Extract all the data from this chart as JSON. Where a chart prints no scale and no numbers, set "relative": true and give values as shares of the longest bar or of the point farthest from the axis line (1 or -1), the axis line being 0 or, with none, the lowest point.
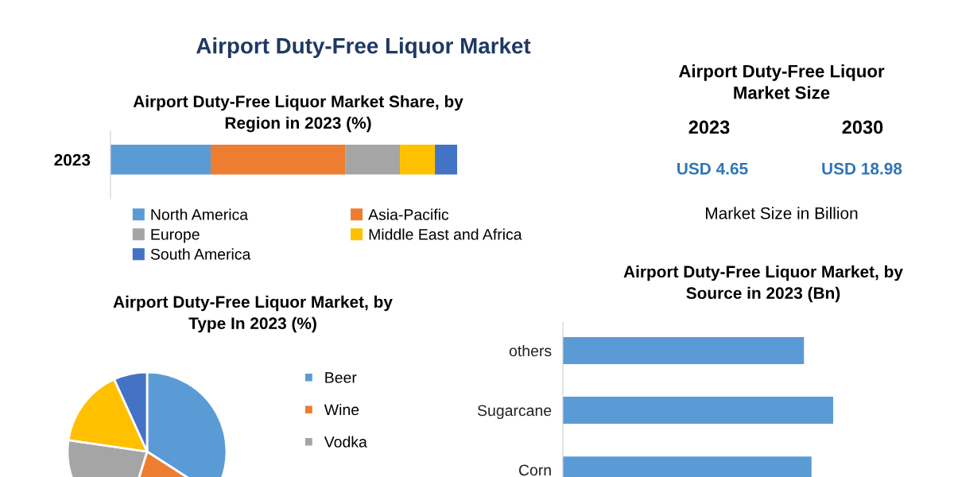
{
  "chart_data": [
    {
      "type": "bar",
      "title": "Airport Duty-Free Liquor Market",
      "subtitle": "Airport Duty-Free Liquor Market Share, by\nRegion in 2023 (%)",
      "orientation": "horizontal",
      "stacked": true,
      "relative": true,
      "legend": "bottom",
      "categories": [
        "2023"
      ],
      "series": [
        {
          "name": "North America",
          "color": "#5b9bd5",
          "values": [
            0.289
          ]
        },
        {
          "name": "Asia-Pacific",
          "color": "#ed7d31",
          "values": [
            0.388
          ]
        },
        {
          "name": "Europe",
          "color": "#a5a5a5",
          "values": [
            0.158
          ]
        },
        {
          "name": "Middle East and Africa",
          "color": "#ffc000",
          "values": [
            0.101
          ]
        },
        {
          "name": "South America",
          "color": "#4472c4",
          "values": [
            0.064
          ]
        }
      ]
    },
    {
      "type": "other",
      "title": "Airport Duty-Free Liquor\nMarket Size",
      "categories": [
        "2023",
        "2030"
      ],
      "value_labels": [
        "USD 4.65",
        "USD 18.98"
      ],
      "color": "#2e75b6",
      "annotations": [
        "Market Size in Billion"
      ]
    },
    {
      "type": "pie",
      "title": "Airport Duty-Free Liquor Market, by\nType In 2023 (%)",
      "legend": "right",
      "categories": [
        "Beer",
        "Wine",
        "Vodka",
        null,
        null
      ],
      "values": [
        34.1,
        20.7,
        22.5,
        15.9,
        6.8
      ],
      "colors": [
        "#5b9bd5",
        "#ed7d31",
        "#a5a5a5",
        "#ffc000",
        "#4472c4"
      ]
    },
    {
      "type": "bar",
      "title": "Airport Duty-Free Liquor Market, by\nSource in 2023 (Bn)",
      "orientation": "horizontal",
      "relative": true,
      "categories": [
        "others",
        "Sugarcane",
        "Corn"
      ],
      "values": [
        0.892,
        1.0,
        0.92
      ],
      "color": "#5b9bd5"
    }
  ]
}
